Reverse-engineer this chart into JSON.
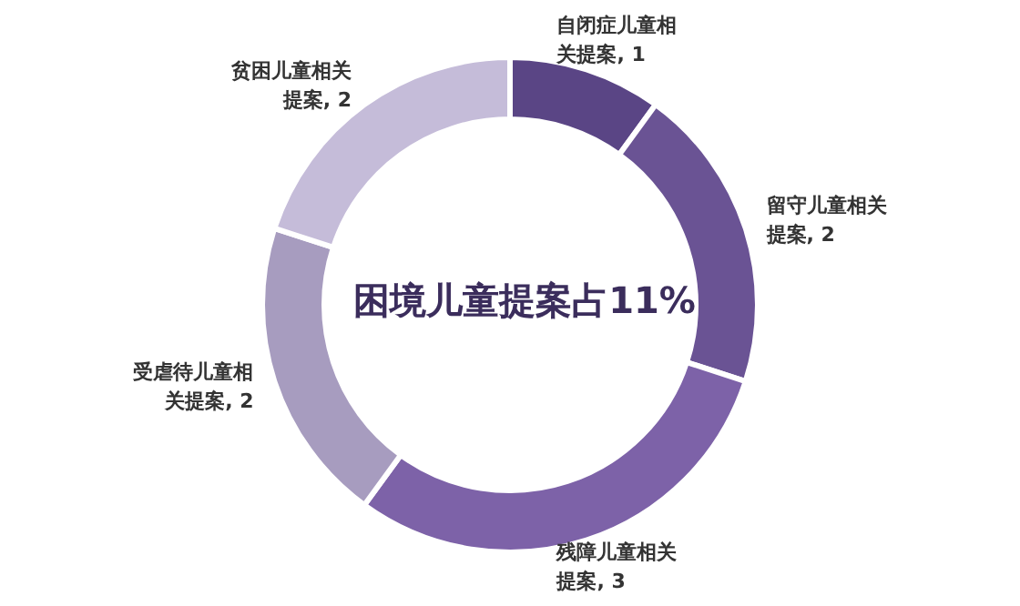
{
  "chart_data": {
    "type": "donut",
    "categories": [
      "自闭症儿童相关提案",
      "留守儿童相关提案",
      "残障儿童相关提案",
      "受虐待儿童相关提案",
      "贫困儿童相关提案"
    ],
    "values": [
      1,
      2,
      3,
      2,
      2
    ],
    "colors": [
      "#5a4585",
      "#6a5394",
      "#7d62a8",
      "#a79cbf",
      "#c5bcd9"
    ],
    "value_labels": [
      ", 1",
      ", 2",
      ", 3",
      ", 2",
      ", 2"
    ],
    "annotations": [
      "困境儿童提案占11%"
    ]
  }
}
